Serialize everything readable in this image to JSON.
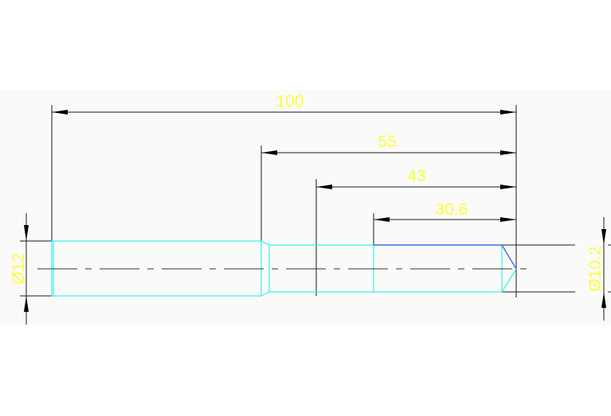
{
  "drawing": {
    "dimensions": {
      "overall_length": "100",
      "length_55": "55",
      "length_43": "43",
      "length_30_6": "30.6",
      "diameter_left": "Ø12",
      "diameter_right": "Ø10.2"
    },
    "colors": {
      "background": "#fafbf8",
      "part_outline": "#38f0f0",
      "highlight_edge": "#3a6ff0",
      "dimension_text": "#ffff40",
      "dimension_lines": "#1a1a1a"
    }
  }
}
